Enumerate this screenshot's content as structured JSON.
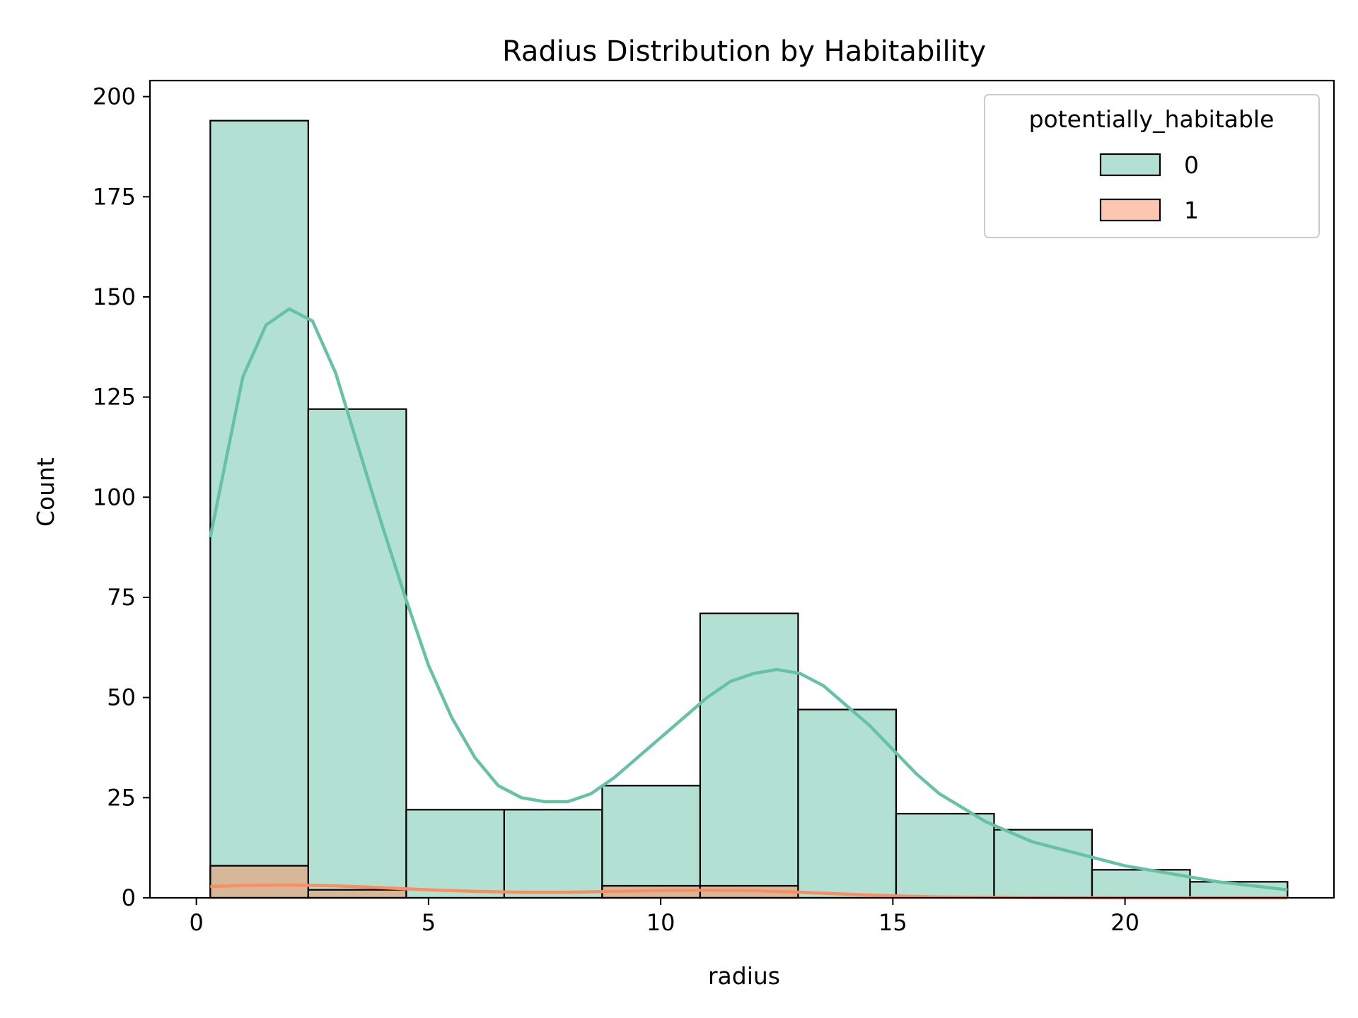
{
  "chart_data": {
    "type": "bar",
    "title": "Radius Distribution by Habitability",
    "xlabel": "radius",
    "ylabel": "Count",
    "xlim": [
      -1.0,
      24.5
    ],
    "ylim": [
      0,
      204
    ],
    "xticks": [
      0,
      5,
      10,
      15,
      20
    ],
    "yticks": [
      0,
      25,
      50,
      75,
      100,
      125,
      150,
      175,
      200
    ],
    "bin_edges": [
      0.3,
      2.41,
      4.52,
      6.63,
      8.74,
      10.85,
      12.96,
      15.07,
      17.18,
      19.29,
      21.4,
      23.5
    ],
    "legend": {
      "title": "potentially_habitable",
      "position": "top-right"
    },
    "series": [
      {
        "name": "0",
        "color": "#66c2a5",
        "counts": [
          194,
          122,
          22,
          22,
          28,
          71,
          47,
          21,
          17,
          7,
          4
        ],
        "kde": {
          "x": [
            0.3,
            1.0,
            1.5,
            2.0,
            2.5,
            3.0,
            3.5,
            4.0,
            4.5,
            5.0,
            5.5,
            6.0,
            6.5,
            7.0,
            7.5,
            8.0,
            8.5,
            9.0,
            9.5,
            10.0,
            10.5,
            11.0,
            11.5,
            12.0,
            12.5,
            13.0,
            13.5,
            14.0,
            14.5,
            15.0,
            15.5,
            16.0,
            17.0,
            18.0,
            19.0,
            20.0,
            21.0,
            22.0,
            23.5
          ],
          "y": [
            90,
            130,
            143,
            147,
            144,
            131,
            112,
            93,
            75,
            58,
            45,
            35,
            28,
            25,
            24,
            24,
            26,
            30,
            35,
            40,
            45,
            50,
            54,
            56,
            57,
            56,
            53,
            48,
            43,
            37,
            31,
            26,
            19,
            14,
            11,
            8,
            6,
            4,
            2
          ]
        }
      },
      {
        "name": "1",
        "color": "#fc8d62",
        "counts": [
          8,
          2,
          0,
          0,
          3,
          3,
          0,
          0,
          0,
          0,
          0
        ],
        "kde": {
          "x": [
            0.3,
            1.0,
            2.0,
            3.0,
            4.0,
            5.0,
            6.0,
            7.0,
            8.0,
            9.0,
            10.0,
            11.0,
            12.0,
            13.0,
            14.0,
            15.0,
            16.0,
            18.0,
            20.0,
            23.5
          ],
          "y": [
            2.8,
            3.1,
            3.2,
            3.0,
            2.5,
            2.0,
            1.6,
            1.4,
            1.4,
            1.6,
            1.8,
            1.9,
            1.8,
            1.4,
            0.9,
            0.5,
            0.2,
            0.05,
            0.0,
            0.0
          ]
        }
      }
    ]
  }
}
